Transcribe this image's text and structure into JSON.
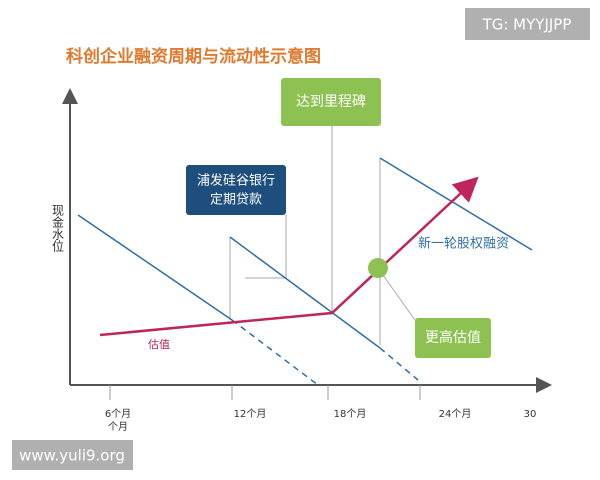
{
  "watermark_top": "TG: MYYJJPP",
  "title": "科创企业融资周期与流动性示意图",
  "y_axis_label": "现金水位",
  "x_axis": {
    "ticks": [
      [
        "6个月",
        "个月"
      ],
      [
        "12个月"
      ],
      [
        "18个月"
      ],
      [
        "24个月"
      ],
      [
        "30"
      ]
    ]
  },
  "boxes": {
    "loan": [
      "浦发硅谷银行",
      "定期贷款"
    ],
    "milestone": "达到里程碑",
    "higher_valuation": "更高估值"
  },
  "labels": {
    "valuation": "估值",
    "new_round": "新一轮股权融资"
  },
  "watermark_bottom": "www.yuli9.org"
}
